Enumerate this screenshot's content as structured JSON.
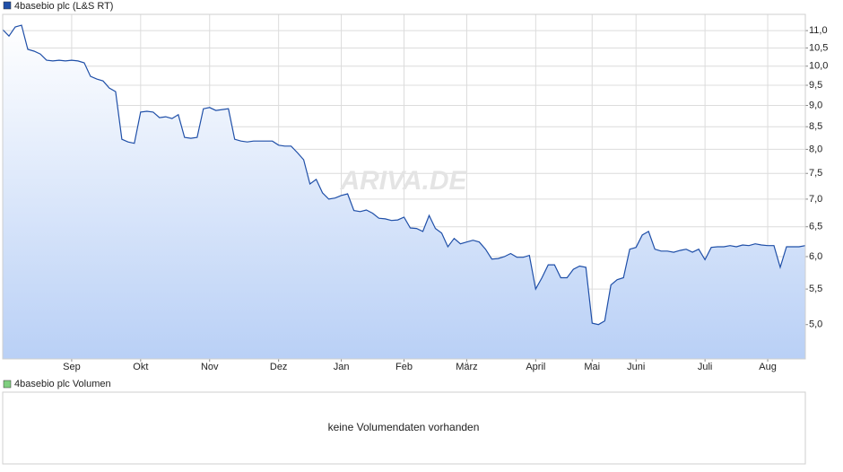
{
  "chart_data": [
    {
      "type": "line",
      "log_y": true,
      "grid": true,
      "watermark": "ARIVA.DE",
      "categories": [
        null,
        null,
        null,
        null,
        null,
        null,
        null,
        null,
        null,
        null,
        null,
        "Sep",
        null,
        null,
        null,
        null,
        null,
        null,
        null,
        null,
        null,
        null,
        "Okt",
        null,
        null,
        null,
        null,
        null,
        null,
        null,
        null,
        null,
        null,
        "Nov",
        null,
        null,
        null,
        null,
        null,
        null,
        null,
        null,
        null,
        null,
        "Dez",
        null,
        null,
        null,
        null,
        null,
        null,
        null,
        null,
        null,
        "Jan",
        null,
        null,
        null,
        null,
        null,
        null,
        null,
        null,
        null,
        "Feb",
        null,
        null,
        null,
        null,
        null,
        null,
        null,
        null,
        null,
        "März",
        null,
        null,
        null,
        null,
        null,
        null,
        null,
        null,
        null,
        null,
        "April",
        null,
        null,
        null,
        null,
        null,
        null,
        null,
        null,
        "Mai",
        null,
        null,
        null,
        null,
        null,
        null,
        "Juni",
        null,
        null,
        null,
        null,
        null,
        null,
        null,
        null,
        null,
        null,
        "Juli",
        null,
        null,
        null,
        null,
        null,
        null,
        null,
        null,
        null,
        "Aug",
        null,
        null,
        null,
        null,
        null,
        null
      ],
      "series": [
        {
          "name": "4basebio plc (L&S RT)",
          "color": "#1f4fa8",
          "values": [
            11.03,
            10.84,
            11.11,
            11.16,
            10.46,
            10.41,
            10.33,
            10.16,
            10.14,
            10.16,
            10.14,
            10.16,
            10.14,
            10.09,
            9.73,
            9.66,
            9.61,
            9.43,
            9.34,
            8.22,
            8.16,
            8.13,
            8.84,
            8.86,
            8.84,
            8.71,
            8.73,
            8.69,
            8.78,
            8.26,
            8.24,
            8.26,
            8.92,
            8.95,
            8.88,
            8.9,
            8.92,
            8.22,
            8.18,
            8.16,
            8.18,
            8.18,
            8.18,
            8.18,
            8.09,
            8.07,
            8.07,
            7.93,
            7.78,
            7.29,
            7.38,
            7.12,
            7.0,
            7.02,
            7.07,
            7.1,
            6.79,
            6.77,
            6.8,
            6.74,
            6.65,
            6.64,
            6.61,
            6.62,
            6.67,
            6.48,
            6.47,
            6.42,
            6.7,
            6.47,
            6.39,
            6.16,
            6.3,
            6.21,
            6.24,
            6.27,
            6.24,
            6.12,
            5.96,
            5.97,
            6.0,
            6.05,
            5.99,
            5.99,
            6.02,
            5.5,
            5.67,
            5.87,
            5.87,
            5.67,
            5.67,
            5.8,
            5.85,
            5.83,
            5.02,
            5.0,
            5.05,
            5.56,
            5.64,
            5.67,
            6.12,
            6.15,
            6.36,
            6.42,
            6.12,
            6.09,
            6.09,
            6.07,
            6.1,
            6.12,
            6.07,
            6.12,
            5.95,
            6.15,
            6.16,
            6.16,
            6.18,
            6.16,
            6.19,
            6.18,
            6.21,
            6.19,
            6.18,
            6.18,
            5.83,
            6.16,
            6.16,
            6.16,
            6.18
          ]
        }
      ],
      "ylim": [
        4.56,
        11.49
      ],
      "yticks": [
        {
          "value": 5.0,
          "label": "5,0"
        },
        {
          "value": 5.5,
          "label": "5,5"
        },
        {
          "value": 6.0,
          "label": "6,0"
        },
        {
          "value": 6.5,
          "label": "6,5"
        },
        {
          "value": 7.0,
          "label": "7,0"
        },
        {
          "value": 7.5,
          "label": "7,5"
        },
        {
          "value": 8.0,
          "label": "8,0"
        },
        {
          "value": 8.5,
          "label": "8,5"
        },
        {
          "value": 9.0,
          "label": "9,0"
        },
        {
          "value": 9.5,
          "label": "9,5"
        },
        {
          "value": 10.0,
          "label": "10,0"
        },
        {
          "value": 10.5,
          "label": "10,5"
        },
        {
          "value": 11.0,
          "label": "11,0"
        }
      ]
    },
    {
      "type": "bar",
      "series": [
        {
          "name": "4basebio plc Volumen",
          "color": "#7fcf7f",
          "values": []
        }
      ],
      "message": "keine Volumendaten vorhanden"
    }
  ]
}
